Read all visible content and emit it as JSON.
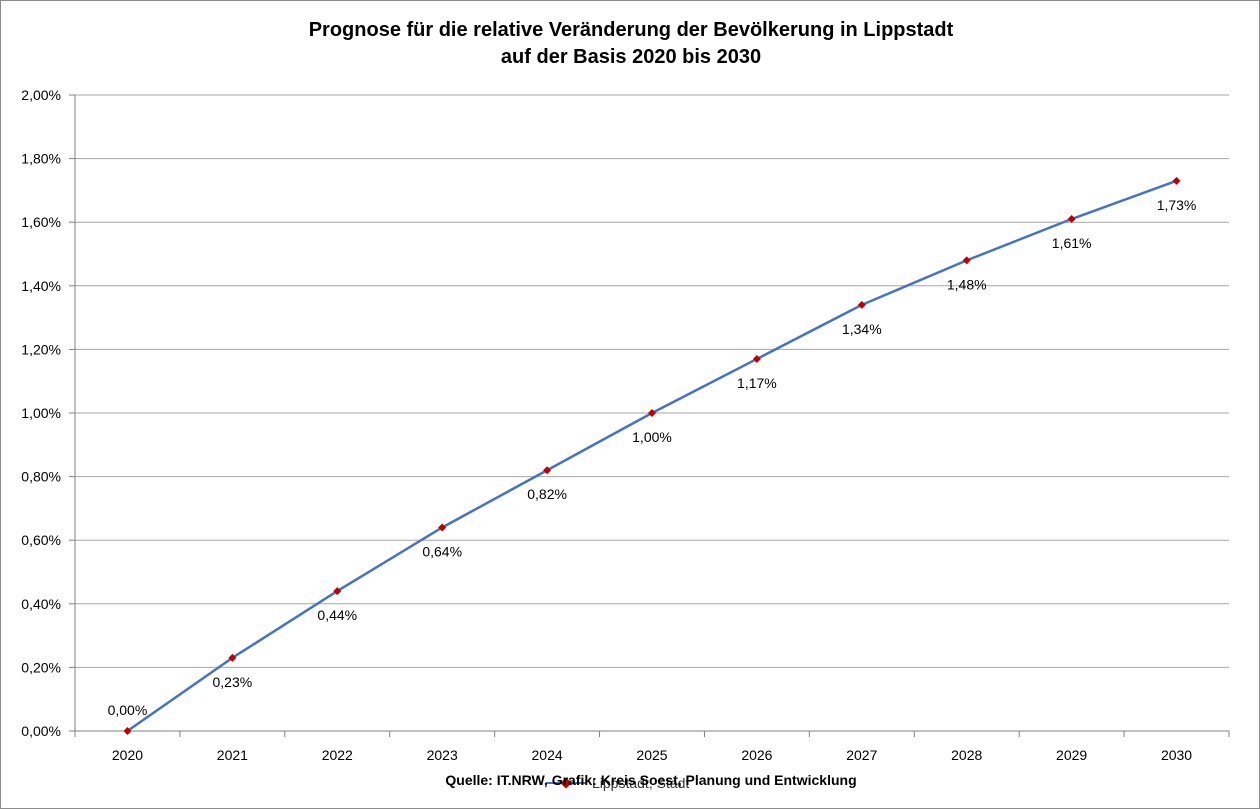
{
  "chart_data": {
    "type": "line",
    "title_line1": "Prognose für die relative Veränderung der Bevölkerung in Lippstadt",
    "title_line2": "auf der Basis 2020 bis 2030",
    "categories": [
      "2020",
      "2021",
      "2022",
      "2023",
      "2024",
      "2025",
      "2026",
      "2027",
      "2028",
      "2029",
      "2030"
    ],
    "series": [
      {
        "name": "Lippstadt, Stadt",
        "values": [
          0.0,
          0.23,
          0.44,
          0.64,
          0.82,
          1.0,
          1.17,
          1.34,
          1.48,
          1.61,
          1.73
        ],
        "labels": [
          "0,00%",
          "0,23%",
          "0,44%",
          "0,64%",
          "0,82%",
          "1,00%",
          "1,17%",
          "1,34%",
          "1,48%",
          "1,61%",
          "1,73%"
        ]
      }
    ],
    "ylim": [
      0,
      2
    ],
    "yticks": [
      0,
      0.2,
      0.4,
      0.6,
      0.8,
      1.0,
      1.2,
      1.4,
      1.6,
      1.8,
      2.0
    ],
    "ytick_labels": [
      "0,00%",
      "0,20%",
      "0,40%",
      "0,60%",
      "0,80%",
      "1,00%",
      "1,20%",
      "1,40%",
      "1,60%",
      "1,80%",
      "2,00%"
    ],
    "xlabel": "",
    "ylabel": "",
    "grid": true,
    "legend_position": "bottom",
    "line_color": "#4472c4",
    "marker_color": "#c00000",
    "gridline_color": "#a6a6a6"
  },
  "source_note": "Quelle: IT.NRW, Grafik: Kreis Soest, Planung und Entwicklung"
}
